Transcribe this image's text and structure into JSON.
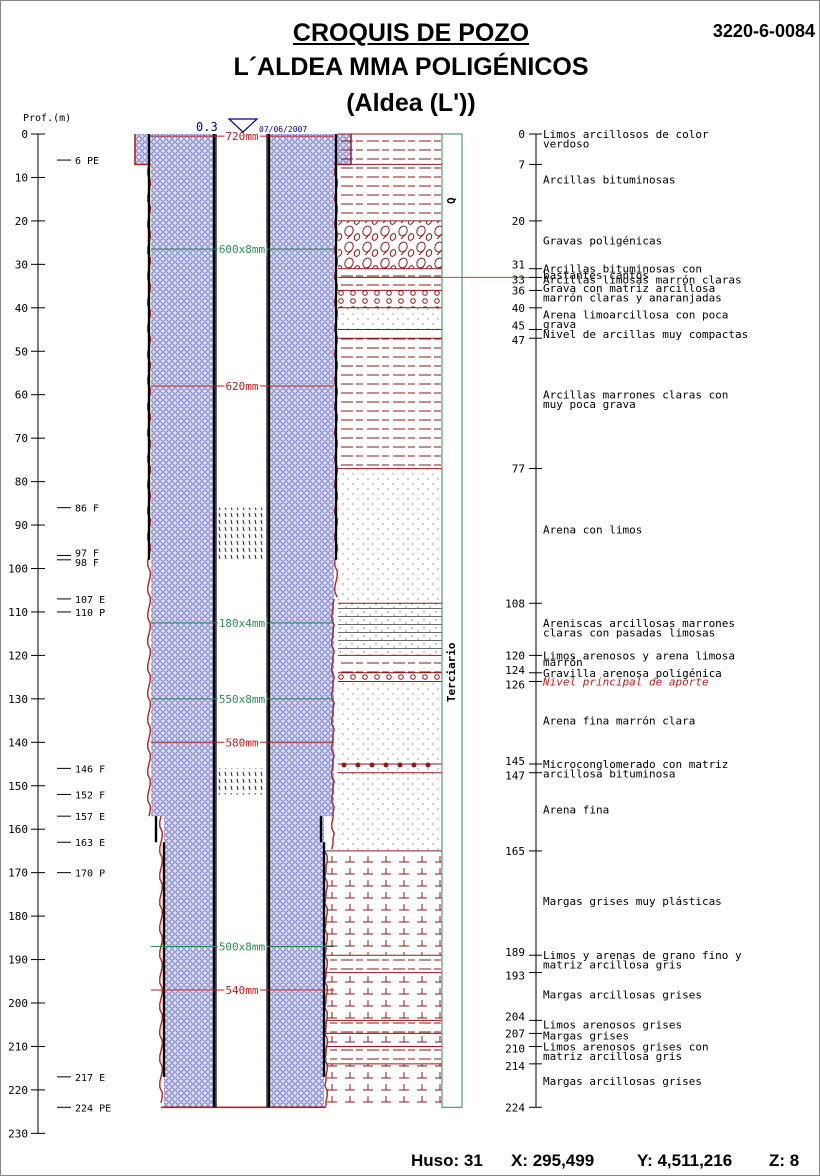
{
  "header": {
    "title": "CROQUIS DE POZO",
    "subtitle": "L´ALDEA MMA POLIGÉNICOS",
    "subtitle2": "(Aldea (L'))",
    "code": "3220-6-0084"
  },
  "depth_axis": {
    "label": "Prof.(m)",
    "ticks": [
      0,
      10,
      20,
      30,
      40,
      50,
      60,
      70,
      80,
      90,
      100,
      110,
      120,
      130,
      140,
      150,
      160,
      170,
      180,
      190,
      200,
      210,
      220,
      230
    ],
    "max": 230
  },
  "water_level": {
    "value": "0.3",
    "date": "07/06/2007"
  },
  "construction_marks": [
    {
      "d": 6,
      "label": "6 PE"
    },
    {
      "d": 86,
      "label": "86 F"
    },
    {
      "d": 97,
      "label": "97 F"
    },
    {
      "d": 98,
      "label": "98 F"
    },
    {
      "d": 107,
      "label": "107 E"
    },
    {
      "d": 110,
      "label": "110 P"
    },
    {
      "d": 146,
      "label": "146 F"
    },
    {
      "d": 152,
      "label": "152 F"
    },
    {
      "d": 157,
      "label": "157 E"
    },
    {
      "d": 163,
      "label": "163 E"
    },
    {
      "d": 170,
      "label": "170 P"
    },
    {
      "d": 217,
      "label": "217 E"
    },
    {
      "d": 224,
      "label": "224 PE"
    }
  ],
  "diameters": [
    {
      "d": 0.5,
      "label": "720mm",
      "color": "#b22222"
    },
    {
      "d": 26.5,
      "label": "600x8mm",
      "color": "#2e8b57"
    },
    {
      "d": 58,
      "label": "620mm",
      "color": "#b22222"
    },
    {
      "d": 112.5,
      "label": "180x4mm",
      "color": "#2e8b57"
    },
    {
      "d": 130,
      "label": "550x8mm",
      "color": "#2e8b57"
    },
    {
      "d": 140,
      "label": "580mm",
      "color": "#b22222"
    },
    {
      "d": 187,
      "label": "500x8mm",
      "color": "#2e8b57"
    },
    {
      "d": 197,
      "label": "540mm",
      "color": "#b22222"
    }
  ],
  "screens": [
    [
      86,
      98
    ],
    [
      146,
      152
    ]
  ],
  "stratigraphy": [
    {
      "top": 0,
      "bottom": 7,
      "type": "clay"
    },
    {
      "top": 7,
      "bottom": 20,
      "type": "clay"
    },
    {
      "top": 20,
      "bottom": 31,
      "type": "gravel"
    },
    {
      "top": 31,
      "bottom": 33,
      "type": "clay"
    },
    {
      "top": 33,
      "bottom": 36,
      "type": "clay"
    },
    {
      "top": 36,
      "bottom": 40,
      "type": "gravel_small"
    },
    {
      "top": 40,
      "bottom": 45,
      "type": "sand"
    },
    {
      "top": 45,
      "bottom": 47,
      "type": "plain"
    },
    {
      "top": 47,
      "bottom": 77,
      "type": "clay"
    },
    {
      "top": 77,
      "bottom": 108,
      "type": "sand"
    },
    {
      "top": 108,
      "bottom": 120,
      "type": "sandstone"
    },
    {
      "top": 120,
      "bottom": 124,
      "type": "clay"
    },
    {
      "top": 124,
      "bottom": 126,
      "type": "gravel_small"
    },
    {
      "top": 126,
      "bottom": 145,
      "type": "sand"
    },
    {
      "top": 145,
      "bottom": 147,
      "type": "conglomerate"
    },
    {
      "top": 147,
      "bottom": 165,
      "type": "sand"
    },
    {
      "top": 165,
      "bottom": 189,
      "type": "marl"
    },
    {
      "top": 189,
      "bottom": 193,
      "type": "clay"
    },
    {
      "top": 193,
      "bottom": 204,
      "type": "marl"
    },
    {
      "top": 204,
      "bottom": 207,
      "type": "clay"
    },
    {
      "top": 207,
      "bottom": 210,
      "type": "marl"
    },
    {
      "top": 210,
      "bottom": 214,
      "type": "clay"
    },
    {
      "top": 214,
      "bottom": 224,
      "type": "marl"
    }
  ],
  "period_labels": [
    {
      "label": "Q",
      "top": 0,
      "bottom": 33
    },
    {
      "label": "Terciario",
      "top": 33,
      "bottom": 224
    }
  ],
  "layer_ticks": [
    0,
    7,
    20,
    31,
    33,
    36,
    40,
    45,
    47,
    77,
    108,
    120,
    124,
    126,
    145,
    147,
    165,
    189,
    193,
    204,
    207,
    210,
    214,
    224
  ],
  "descriptions": [
    {
      "d": 0,
      "lines": [
        "Limos arcillosos de color",
        "verdoso"
      ]
    },
    {
      "d": 10.5,
      "lines": [
        "Arcillas bituminosas"
      ]
    },
    {
      "d": 24.5,
      "lines": [
        "Gravas poligénicas"
      ]
    },
    {
      "d": 31,
      "lines": [
        "Arcillas bituminosas con"
      ]
    },
    {
      "d": 32.5,
      "lines": [
        "bastantes cantos"
      ]
    },
    {
      "d": 33.5,
      "lines": [
        "Arcillas limosas marrón claras"
      ]
    },
    {
      "d": 35.5,
      "lines": [
        "Grava con matriz arcillosa",
        "marrón claras y anaranjadas"
      ]
    },
    {
      "d": 41.5,
      "lines": [
        "Arena limoarcillosa con poca",
        "grava"
      ]
    },
    {
      "d": 46,
      "lines": [
        "Nivel de arcillas muy compactas"
      ]
    },
    {
      "d": 60,
      "lines": [
        "Arcillas marrones claras con",
        "muy poca grava"
      ]
    },
    {
      "d": 91,
      "lines": [
        "Arena con limos"
      ]
    },
    {
      "d": 112.5,
      "lines": [
        "Areniscas arcillosas marrones",
        "claras con pasadas limosas"
      ]
    },
    {
      "d": 120,
      "lines": [
        "Limos arenosos y arena limosa"
      ]
    },
    {
      "d": 121.5,
      "lines": [
        "marrón"
      ]
    },
    {
      "d": 124,
      "lines": [
        "Gravilla arenosa poligénica"
      ]
    },
    {
      "d": 126,
      "lines": [
        "Nivel principal de aporte"
      ],
      "italic": true,
      "color": "#b22222"
    },
    {
      "d": 135,
      "lines": [
        "Arena fina marrón clara"
      ]
    },
    {
      "d": 145,
      "lines": [
        "Microconglomerado con matriz",
        "arcillosa bituminosa"
      ]
    },
    {
      "d": 155.5,
      "lines": [
        "Arena fina"
      ]
    },
    {
      "d": 176.5,
      "lines": [
        "Margas grises muy plásticas"
      ]
    },
    {
      "d": 189,
      "lines": [
        "Limos y arenas de grano fino y",
        "matriz arcillosa gris"
      ]
    },
    {
      "d": 198,
      "lines": [
        "Margas arcillosas grises"
      ]
    },
    {
      "d": 205,
      "lines": [
        "Limos arenosos grises"
      ]
    },
    {
      "d": 207.5,
      "lines": [
        "Margas grises"
      ]
    },
    {
      "d": 210,
      "lines": [
        "Limos arenosos grises con",
        "matriz arcillosa gris"
      ]
    },
    {
      "d": 218,
      "lines": [
        "Margas arcillosas grises"
      ]
    }
  ],
  "footer": {
    "huso": "Huso: 31",
    "x": "X: 295,499",
    "y": "Y: 4,511,216",
    "z": "Z: 8"
  },
  "colors": {
    "casing": "#b22222",
    "gravel_pack": "#6a6fc2",
    "lithology": "#8b1a1a",
    "frame": "#2e8b57",
    "screen": "#1a1a9c"
  }
}
